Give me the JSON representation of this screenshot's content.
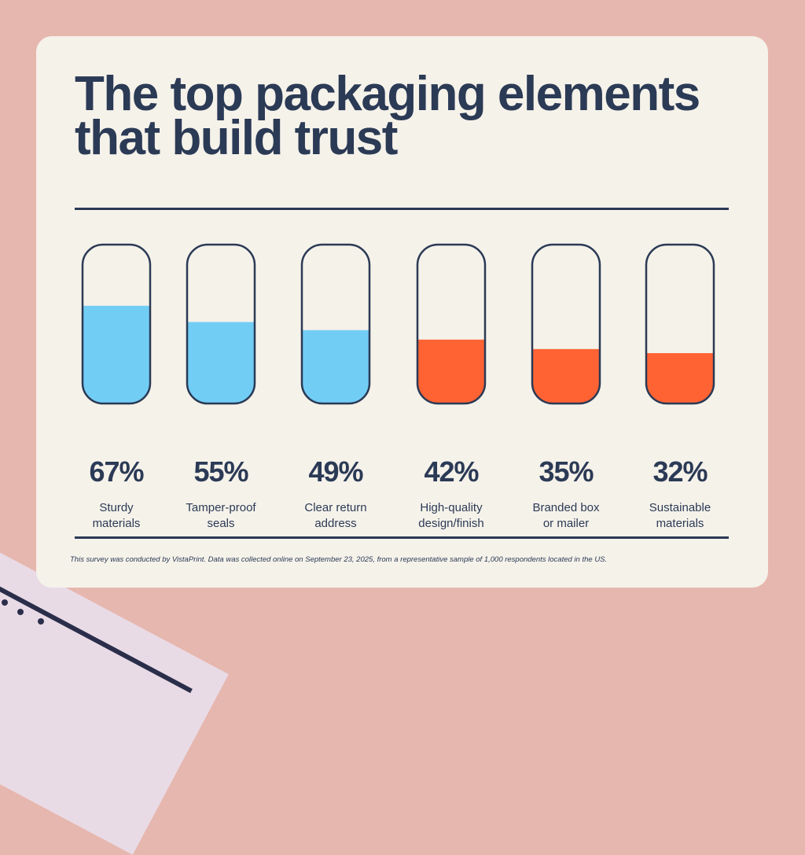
{
  "chart_data": {
    "type": "bar",
    "title": "The top packaging elements\nthat build trust",
    "categories": [
      "Sturdy\nmaterials",
      "Tamper-proof\nseals",
      "Clear return\naddress",
      "High-quality\ndesign/finish",
      "Branded box\nor mailer",
      "Sustainable\nmaterials"
    ],
    "values": [
      67,
      55,
      49,
      42,
      35,
      32
    ],
    "value_labels": [
      "67%",
      "55%",
      "49%",
      "42%",
      "35%",
      "32%"
    ],
    "unit": "%",
    "ylim": [
      0,
      100
    ],
    "colors": [
      "#72cdf4",
      "#72cdf4",
      "#72cdf4",
      "#ff6333",
      "#ff6333",
      "#ff6333"
    ],
    "grid": false
  },
  "footnote": "This survey was conducted by VistaPrint. Data was collected online on September 23, 2025, from a representative sample of 1,000 respondents located in the US.",
  "colors": {
    "background": "#e6b7ae",
    "card": "#f5f2ea",
    "text": "#2b3a55"
  }
}
